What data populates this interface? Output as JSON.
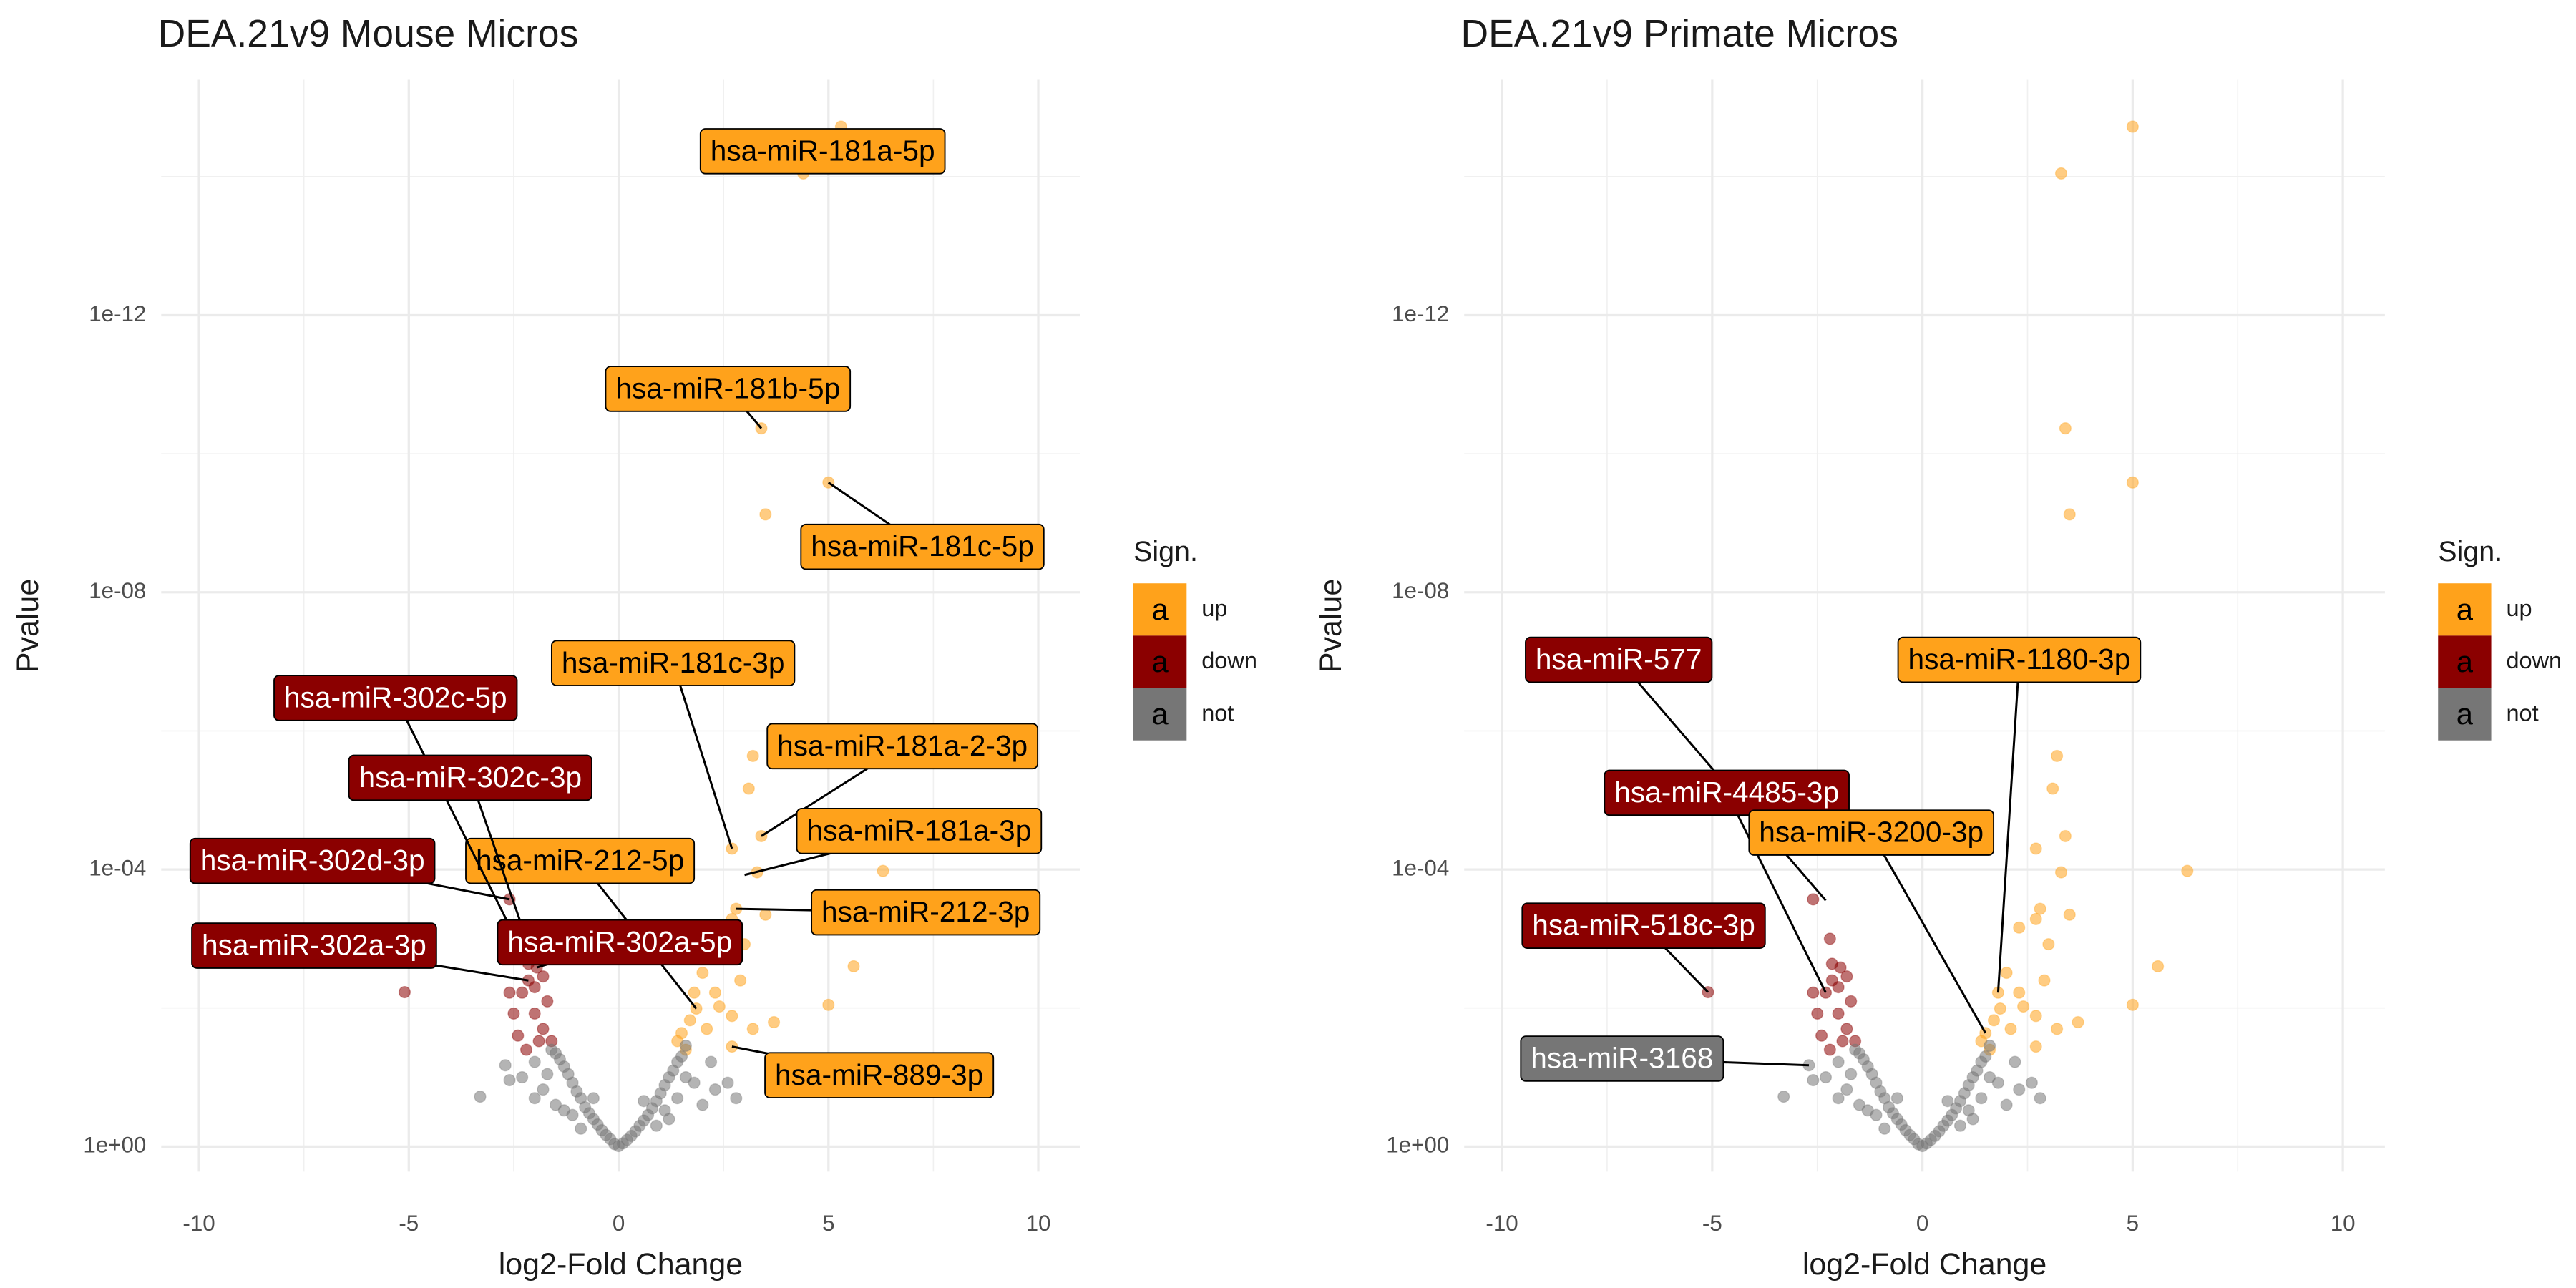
{
  "chart_data": [
    {
      "type": "scatter",
      "title": "DEA.21v9 Mouse Micros",
      "x_label": "log2-Fold Change",
      "y_label": "Pvalue",
      "xlim": [
        -10.9,
        11
      ],
      "xticks": [
        -10,
        -5,
        0,
        5,
        10
      ],
      "xticks_minor": [
        -7.5,
        -2.5,
        2.5,
        7.5
      ],
      "ylim": [
        2.3,
        4e-16
      ],
      "y_log": true,
      "y_reversed": true,
      "yticks": [
        {
          "value": 1,
          "label": "1e+00"
        },
        {
          "value": 0.0001,
          "label": "1e-04"
        },
        {
          "value": 1e-08,
          "label": "1e-08"
        },
        {
          "value": 1e-12,
          "label": "1e-12"
        }
      ],
      "yticks_minor": [
        0.01,
        1e-06,
        1e-10,
        1e-14
      ],
      "grid": true,
      "legend_title": "Sign.",
      "legend_key_label": "a",
      "legend_position": "right",
      "series": [
        {
          "name": "up",
          "color": "#FFA21B",
          "x": [
            5.3,
            4.4,
            3.4,
            5.0,
            3.5,
            3.2,
            3.1,
            3.4,
            2.7,
            3.3,
            6.3,
            3.5,
            2.8,
            2.7,
            2.3,
            3.0,
            5.6,
            2.0,
            2.9,
            1.8,
            5.0,
            2.3,
            2.7,
            3.7,
            1.85,
            2.7,
            1.5,
            1.4,
            1.6,
            2.1,
            1.7,
            3.2,
            2.4
          ],
          "values": [
            1.9e-15,
            9e-15,
            4.3e-11,
            2.6e-10,
            7.5e-10,
            2.3e-06,
            6.8e-06,
            3.3e-05,
            5e-05,
            0.00011,
            0.000105,
            0.00045,
            0.00037,
            0.00052,
            0.00069,
            0.0012,
            0.0025,
            0.0031,
            0.004,
            0.006,
            0.009,
            0.006,
            0.013,
            0.016,
            0.0102,
            0.036,
            0.023,
            0.03,
            0.04,
            0.02,
            0.015,
            0.02,
            0.0095
          ]
        },
        {
          "name": "down",
          "color": "#8B0000",
          "x": [
            -2.6,
            -2.2,
            -2.15,
            -1.95,
            -2.15,
            -2.3,
            -5.1,
            -2.5,
            -2.0,
            -1.8,
            -2.4,
            -1.9,
            -1.6,
            -2.2,
            -2.6,
            -1.7,
            -2.0,
            -1.8
          ],
          "values": [
            0.00027,
            0.001,
            0.0023,
            0.0026,
            0.004,
            0.006,
            0.0059,
            0.012,
            0.012,
            0.02,
            0.025,
            0.03,
            0.03,
            0.04,
            0.006,
            0.008,
            0.005,
            0.0035
          ]
        },
        {
          "name": "not",
          "color": "#767676",
          "x": [
            0,
            0.1,
            -0.1,
            0.2,
            -0.2,
            0.3,
            -0.3,
            0.4,
            -0.4,
            0.5,
            -0.5,
            0.6,
            -0.6,
            0.7,
            -0.7,
            0.8,
            -0.8,
            0.9,
            -0.9,
            1.0,
            -1.0,
            1.1,
            -1.1,
            1.2,
            -1.2,
            1.3,
            -1.3,
            1.4,
            -1.4,
            1.5,
            -1.5,
            -1.6,
            1.6,
            -1.3,
            1.2,
            -1.5,
            1.4,
            -1.8,
            1.8,
            -2.0,
            2.0,
            2.3,
            -2.3,
            2.6,
            -2.6,
            -3.3,
            -2.7,
            2.2,
            -0.6,
            0.6,
            0.9,
            -0.9,
            1.1,
            -1.1,
            2.8,
            -2.0,
            1.6,
            -1.7
          ],
          "values": [
            0.98,
            0.9,
            0.92,
            0.8,
            0.78,
            0.7,
            0.68,
            0.6,
            0.58,
            0.5,
            0.48,
            0.42,
            0.4,
            0.35,
            0.33,
            0.28,
            0.27,
            0.22,
            0.2,
            0.17,
            0.16,
            0.13,
            0.12,
            0.1,
            0.09,
            0.08,
            0.07,
            0.06,
            0.055,
            0.05,
            0.045,
            0.04,
            0.035,
            0.3,
            0.4,
            0.25,
            0.2,
            0.15,
            0.12,
            0.2,
            0.25,
            0.15,
            0.1,
            0.12,
            0.11,
            0.19,
            0.067,
            0.06,
            0.2,
            0.22,
            0.5,
            0.55,
            0.3,
            0.35,
            0.2,
            0.06,
            0.1,
            0.09
          ]
        }
      ],
      "annotations": [
        {
          "text": "hsa-miR-181a-5p",
          "x": 4.4,
          "y": 9e-15,
          "color": "#FFA21B",
          "text_color": "#000000"
        },
        {
          "text": "hsa-miR-181b-5p",
          "x": 3.4,
          "y": 4.3e-11,
          "color": "#FFA21B",
          "text_color": "#000000"
        },
        {
          "text": "hsa-miR-181c-5p",
          "x": 5.0,
          "y": 2.6e-10,
          "color": "#FFA21B",
          "text_color": "#000000"
        },
        {
          "text": "hsa-miR-181c-3p",
          "x": 2.7,
          "y": 5e-05,
          "color": "#FFA21B",
          "text_color": "#000000"
        },
        {
          "text": "hsa-miR-181a-2-3p",
          "x": 3.4,
          "y": 3.3e-05,
          "color": "#FFA21B",
          "text_color": "#000000"
        },
        {
          "text": "hsa-miR-181a-3p",
          "x": 3.0,
          "y": 0.00012,
          "color": "#FFA21B",
          "text_color": "#000000"
        },
        {
          "text": "hsa-miR-212-5p",
          "x": 1.85,
          "y": 0.0102,
          "color": "#FFA21B",
          "text_color": "#000000"
        },
        {
          "text": "hsa-miR-212-3p",
          "x": 2.8,
          "y": 0.00037,
          "color": "#FFA21B",
          "text_color": "#000000"
        },
        {
          "text": "hsa-miR-889-3p",
          "x": 2.7,
          "y": 0.036,
          "color": "#FFA21B",
          "text_color": "#000000"
        },
        {
          "text": "hsa-miR-302c-5p",
          "x": -2.15,
          "y": 0.0023,
          "color": "#8B0000",
          "text_color": "#ffffff"
        },
        {
          "text": "hsa-miR-302c-3p",
          "x": -2.2,
          "y": 0.001,
          "color": "#8B0000",
          "text_color": "#ffffff"
        },
        {
          "text": "hsa-miR-302d-3p",
          "x": -2.6,
          "y": 0.00027,
          "color": "#8B0000",
          "text_color": "#ffffff"
        },
        {
          "text": "hsa-miR-302a-5p",
          "x": -1.95,
          "y": 0.0026,
          "color": "#8B0000",
          "text_color": "#ffffff"
        },
        {
          "text": "hsa-miR-302a-3p",
          "x": -2.15,
          "y": 0.004,
          "color": "#8B0000",
          "text_color": "#ffffff"
        }
      ]
    },
    {
      "type": "scatter",
      "title": "DEA.21v9 Primate Micros",
      "x_label": "log2-Fold Change",
      "y_label": "Pvalue",
      "xlim": [
        -10.9,
        11
      ],
      "xticks": [
        -10,
        -5,
        0,
        5,
        10
      ],
      "xticks_minor": [
        -7.5,
        -2.5,
        2.5,
        7.5
      ],
      "ylim": [
        2.3,
        4e-16
      ],
      "y_log": true,
      "y_reversed": true,
      "yticks": [
        {
          "value": 1,
          "label": "1e+00"
        },
        {
          "value": 0.0001,
          "label": "1e-04"
        },
        {
          "value": 1e-08,
          "label": "1e-08"
        },
        {
          "value": 1e-12,
          "label": "1e-12"
        }
      ],
      "yticks_minor": [
        0.01,
        1e-06,
        1e-10,
        1e-14
      ],
      "grid": true,
      "legend_title": "Sign.",
      "legend_key_label": "a",
      "legend_position": "right",
      "series": [
        {
          "name": "up",
          "color": "#FFA21B",
          "x": [
            5.0,
            3.3,
            3.4,
            5.0,
            3.5,
            3.2,
            3.1,
            3.4,
            2.7,
            3.3,
            6.3,
            3.5,
            2.8,
            2.7,
            2.3,
            3.0,
            5.6,
            2.0,
            2.9,
            1.8,
            5.0,
            2.3,
            2.7,
            3.7,
            1.85,
            2.7,
            1.5,
            1.4,
            1.6,
            2.1,
            1.7,
            3.2,
            2.4
          ],
          "values": [
            1.9e-15,
            9e-15,
            4.3e-11,
            2.6e-10,
            7.5e-10,
            2.3e-06,
            6.8e-06,
            3.3e-05,
            5e-05,
            0.00011,
            0.000105,
            0.00045,
            0.00037,
            0.00052,
            0.00069,
            0.0012,
            0.0025,
            0.0031,
            0.004,
            0.006,
            0.009,
            0.006,
            0.013,
            0.016,
            0.0102,
            0.036,
            0.023,
            0.03,
            0.04,
            0.02,
            0.015,
            0.02,
            0.0095
          ]
        },
        {
          "name": "down",
          "color": "#8B0000",
          "x": [
            -2.6,
            -2.2,
            -2.15,
            -1.95,
            -2.15,
            -2.3,
            -5.1,
            -2.5,
            -2.0,
            -1.8,
            -2.4,
            -1.9,
            -1.6,
            -2.2,
            -2.6,
            -1.7,
            -2.0,
            -1.8
          ],
          "values": [
            0.00027,
            0.001,
            0.0023,
            0.0026,
            0.004,
            0.006,
            0.0059,
            0.012,
            0.012,
            0.02,
            0.025,
            0.03,
            0.03,
            0.04,
            0.006,
            0.008,
            0.005,
            0.0035
          ]
        },
        {
          "name": "not",
          "color": "#767676",
          "x": [
            0,
            0.1,
            -0.1,
            0.2,
            -0.2,
            0.3,
            -0.3,
            0.4,
            -0.4,
            0.5,
            -0.5,
            0.6,
            -0.6,
            0.7,
            -0.7,
            0.8,
            -0.8,
            0.9,
            -0.9,
            1.0,
            -1.0,
            1.1,
            -1.1,
            1.2,
            -1.2,
            1.3,
            -1.3,
            1.4,
            -1.4,
            1.5,
            -1.5,
            -1.6,
            1.6,
            -1.3,
            1.2,
            -1.5,
            1.4,
            -1.8,
            1.8,
            -2.0,
            2.0,
            2.3,
            -2.3,
            2.6,
            -2.6,
            -3.3,
            -2.7,
            2.2,
            -0.6,
            0.6,
            0.9,
            -0.9,
            1.1,
            -1.1,
            2.8,
            -2.0,
            1.6,
            -1.7
          ],
          "values": [
            0.98,
            0.9,
            0.92,
            0.8,
            0.78,
            0.7,
            0.68,
            0.6,
            0.58,
            0.5,
            0.48,
            0.42,
            0.4,
            0.35,
            0.33,
            0.28,
            0.27,
            0.22,
            0.2,
            0.17,
            0.16,
            0.13,
            0.12,
            0.1,
            0.09,
            0.08,
            0.07,
            0.06,
            0.055,
            0.05,
            0.045,
            0.04,
            0.035,
            0.3,
            0.4,
            0.25,
            0.2,
            0.15,
            0.12,
            0.2,
            0.25,
            0.15,
            0.1,
            0.12,
            0.11,
            0.19,
            0.067,
            0.06,
            0.2,
            0.22,
            0.5,
            0.55,
            0.3,
            0.35,
            0.2,
            0.06,
            0.1,
            0.09
          ]
        }
      ],
      "annotations": [
        {
          "text": "hsa-miR-577",
          "x": -2.3,
          "y": 0.00028,
          "color": "#8B0000",
          "text_color": "#ffffff"
        },
        {
          "text": "hsa-miR-4485-3p",
          "x": -2.3,
          "y": 0.006,
          "color": "#8B0000",
          "text_color": "#ffffff"
        },
        {
          "text": "hsa-miR-518c-3p",
          "x": -5.1,
          "y": 0.0059,
          "color": "#8B0000",
          "text_color": "#ffffff"
        },
        {
          "text": "hsa-miR-3168",
          "x": -2.7,
          "y": 0.067,
          "color": "#767676",
          "text_color": "#ffffff"
        },
        {
          "text": "hsa-miR-1180-3p",
          "x": 1.8,
          "y": 0.006,
          "color": "#FFA21B",
          "text_color": "#000000"
        },
        {
          "text": "hsa-miR-3200-3p",
          "x": 1.5,
          "y": 0.023,
          "color": "#FFA21B",
          "text_color": "#000000"
        }
      ]
    }
  ]
}
